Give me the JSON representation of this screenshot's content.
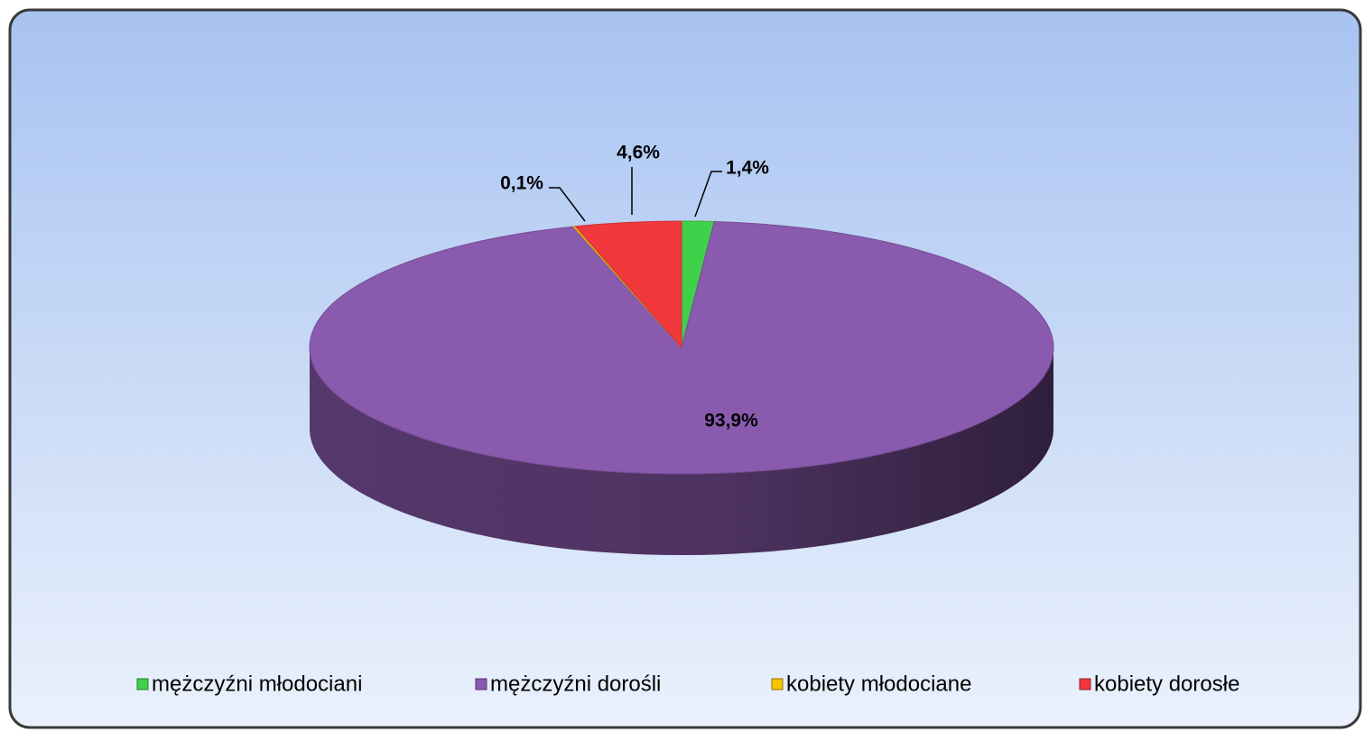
{
  "chart_data": {
    "type": "pie",
    "categories": [
      "mężczyźni młodociani",
      "mężczyźni dorośli",
      "kobiety młodociane",
      "kobiety dorosłe"
    ],
    "values": [
      1.4,
      93.9,
      0.1,
      4.6
    ],
    "value_labels": [
      "1,4%",
      "93,9%",
      "0,1%",
      "4,6%"
    ],
    "colors": [
      "#3fd14a",
      "#8a5aae",
      "#f5c400",
      "#f0383d"
    ],
    "legend": "bottom"
  }
}
